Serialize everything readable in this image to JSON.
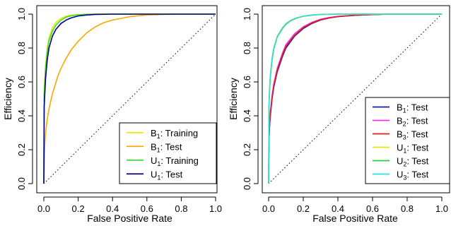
{
  "chart_data": [
    {
      "type": "line",
      "xlabel": "False Positive Rate",
      "ylabel": "Efficiency",
      "xlim": [
        0,
        1
      ],
      "ylim": [
        0,
        1
      ],
      "xticks": [
        "0.0",
        "0.2",
        "0.4",
        "0.6",
        "0.8",
        "1.0"
      ],
      "yticks": [
        "0.0",
        "0.2",
        "0.4",
        "0.6",
        "0.8",
        "1.0"
      ],
      "grid": false,
      "legend_position": "bottom-right",
      "diagonal_reference": true,
      "series": [
        {
          "name": "Training",
          "base": "B",
          "sub": "1",
          "color": "#e6e600",
          "x": [
            0,
            0.002,
            0.01,
            0.02,
            0.03,
            0.05,
            0.07,
            0.1,
            0.13,
            0.16,
            0.2,
            0.25,
            0.3,
            0.4,
            1.0
          ],
          "y": [
            0,
            0.55,
            0.7,
            0.8,
            0.86,
            0.92,
            0.95,
            0.975,
            0.988,
            0.994,
            0.997,
            0.999,
            1.0,
            1.0,
            1.0
          ]
        },
        {
          "name": "Test",
          "base": "B",
          "sub": "1",
          "color": "#ffa500",
          "x": [
            0,
            0.005,
            0.01,
            0.02,
            0.03,
            0.05,
            0.08,
            0.1,
            0.13,
            0.16,
            0.2,
            0.25,
            0.3,
            0.35,
            0.4,
            0.5,
            0.6,
            0.7,
            0.8,
            1.0
          ],
          "y": [
            0,
            0.22,
            0.3,
            0.38,
            0.44,
            0.53,
            0.63,
            0.68,
            0.74,
            0.79,
            0.84,
            0.89,
            0.925,
            0.95,
            0.965,
            0.985,
            0.995,
            0.998,
            1.0,
            1.0
          ]
        },
        {
          "name": "Training",
          "base": "U",
          "sub": "1",
          "color": "#33dd33",
          "x": [
            0,
            0.002,
            0.01,
            0.02,
            0.03,
            0.05,
            0.07,
            0.1,
            0.13,
            0.16,
            0.2,
            0.25,
            0.3,
            0.4,
            1.0
          ],
          "y": [
            0,
            0.52,
            0.68,
            0.78,
            0.84,
            0.9,
            0.935,
            0.965,
            0.982,
            0.99,
            0.996,
            0.999,
            1.0,
            1.0,
            1.0
          ]
        },
        {
          "name": "Test",
          "base": "U",
          "sub": "1",
          "color": "#00008b",
          "x": [
            0,
            0.002,
            0.01,
            0.02,
            0.03,
            0.05,
            0.07,
            0.1,
            0.13,
            0.16,
            0.2,
            0.25,
            0.3,
            0.4,
            0.5,
            1.0
          ],
          "y": [
            0,
            0.45,
            0.62,
            0.73,
            0.8,
            0.87,
            0.91,
            0.945,
            0.965,
            0.978,
            0.989,
            0.995,
            0.998,
            1.0,
            1.0,
            1.0
          ]
        }
      ]
    },
    {
      "type": "line",
      "xlabel": "False Positive Rate",
      "ylabel": "Efficiency",
      "xlim": [
        0,
        1
      ],
      "ylim": [
        0,
        1
      ],
      "xticks": [
        "0.0",
        "0.2",
        "0.4",
        "0.6",
        "0.8",
        "1.0"
      ],
      "yticks": [
        "0.0",
        "0.2",
        "0.4",
        "0.6",
        "0.8",
        "1.0"
      ],
      "grid": false,
      "legend_position": "bottom-right",
      "diagonal_reference": true,
      "series": [
        {
          "name": "Test",
          "base": "B",
          "sub": "1",
          "color": "#1a1aa6",
          "x": [
            0,
            0.002,
            0.005,
            0.01,
            0.02,
            0.03,
            0.05,
            0.08,
            0.1,
            0.15,
            0.2,
            0.25,
            0.3,
            0.35,
            0.4,
            0.5,
            0.6,
            0.7,
            1.0
          ],
          "y": [
            0,
            0.25,
            0.33,
            0.4,
            0.5,
            0.57,
            0.66,
            0.75,
            0.8,
            0.87,
            0.915,
            0.945,
            0.965,
            0.977,
            0.985,
            0.993,
            0.997,
            1.0,
            1.0
          ]
        },
        {
          "name": "Test",
          "base": "B",
          "sub": "2",
          "color": "#ee33ee",
          "x": [
            0,
            0.002,
            0.005,
            0.01,
            0.02,
            0.03,
            0.05,
            0.08,
            0.1,
            0.15,
            0.2,
            0.25,
            0.3,
            0.35,
            0.4,
            0.5,
            0.6,
            0.7,
            1.0
          ],
          "y": [
            0,
            0.27,
            0.35,
            0.42,
            0.52,
            0.59,
            0.68,
            0.77,
            0.82,
            0.885,
            0.925,
            0.952,
            0.97,
            0.98,
            0.987,
            0.994,
            0.998,
            1.0,
            1.0
          ]
        },
        {
          "name": "Test",
          "base": "B",
          "sub": "3",
          "color": "#dd2222",
          "x": [
            0,
            0.002,
            0.005,
            0.01,
            0.02,
            0.03,
            0.05,
            0.08,
            0.1,
            0.15,
            0.2,
            0.25,
            0.3,
            0.35,
            0.4,
            0.5,
            0.6,
            0.7,
            1.0
          ],
          "y": [
            0,
            0.26,
            0.34,
            0.41,
            0.51,
            0.58,
            0.67,
            0.76,
            0.81,
            0.875,
            0.92,
            0.948,
            0.967,
            0.978,
            0.986,
            0.993,
            0.997,
            1.0,
            1.0
          ]
        },
        {
          "name": "Test",
          "base": "U",
          "sub": "1",
          "color": "#e6e600",
          "x": [
            0,
            0.002,
            0.005,
            0.01,
            0.02,
            0.03,
            0.05,
            0.08,
            0.1,
            0.13,
            0.16,
            0.2,
            0.25,
            0.3,
            0.4,
            0.5,
            1.0
          ],
          "y": [
            0,
            0.45,
            0.55,
            0.64,
            0.74,
            0.8,
            0.87,
            0.92,
            0.945,
            0.965,
            0.978,
            0.988,
            0.995,
            0.998,
            1.0,
            1.0,
            1.0
          ]
        },
        {
          "name": "Test",
          "base": "U",
          "sub": "2",
          "color": "#33cc33",
          "x": [
            0,
            0.002,
            0.005,
            0.01,
            0.02,
            0.03,
            0.05,
            0.08,
            0.1,
            0.13,
            0.16,
            0.2,
            0.25,
            0.3,
            0.4,
            0.5,
            1.0
          ],
          "y": [
            0,
            0.44,
            0.54,
            0.63,
            0.73,
            0.795,
            0.865,
            0.915,
            0.94,
            0.962,
            0.976,
            0.987,
            0.994,
            0.998,
            1.0,
            1.0,
            1.0
          ]
        },
        {
          "name": "Test",
          "base": "U",
          "sub": "3",
          "color": "#33dddd",
          "x": [
            0,
            0.002,
            0.005,
            0.01,
            0.02,
            0.03,
            0.05,
            0.08,
            0.1,
            0.13,
            0.16,
            0.2,
            0.25,
            0.3,
            0.4,
            0.5,
            1.0
          ],
          "y": [
            0,
            0.45,
            0.55,
            0.64,
            0.74,
            0.8,
            0.868,
            0.918,
            0.943,
            0.964,
            0.977,
            0.988,
            0.995,
            0.998,
            1.0,
            1.0,
            1.0
          ]
        }
      ]
    }
  ]
}
